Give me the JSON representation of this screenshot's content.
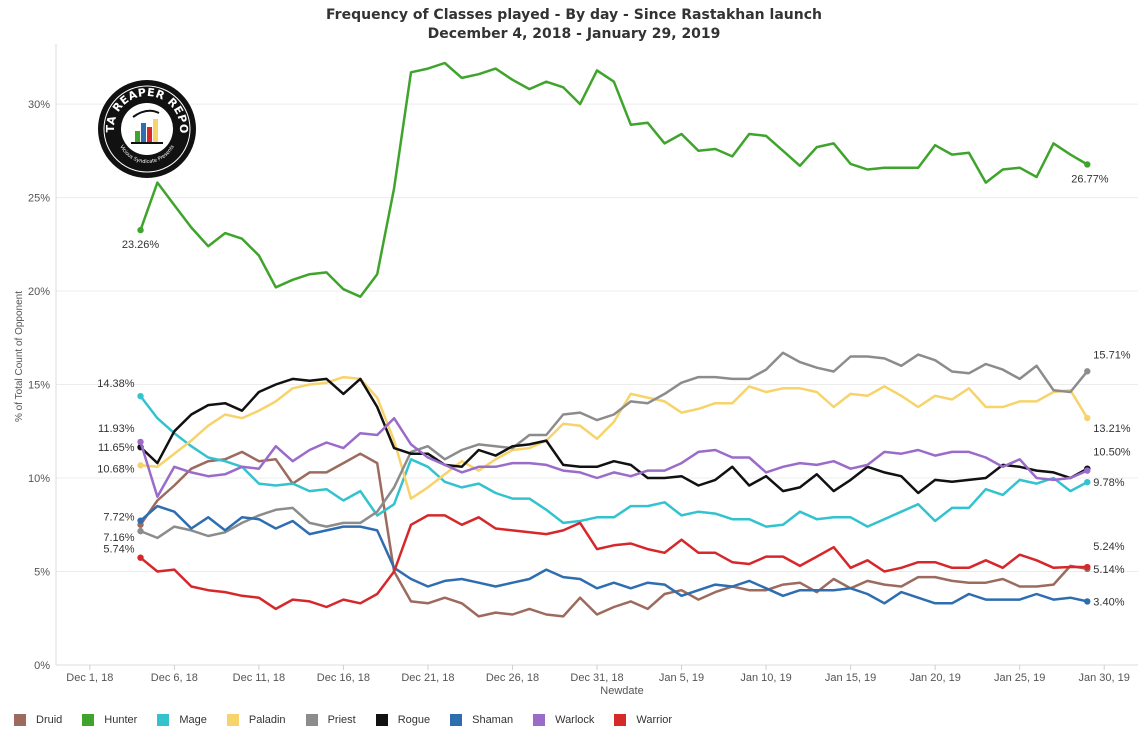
{
  "title": "Frequency of Classes played - By day - Since Rastakhan launch",
  "subtitle": "December 4, 2018 - January 29, 2019",
  "logo": {
    "text_top": "DATA REAPER REPORT",
    "text_bottom": "Vicious Syndicate Presents"
  },
  "chart_data": {
    "type": "line",
    "title": "Frequency of Classes played - By day - Since Rastakhan launch",
    "subtitle": "December 4, 2018 - January 29, 2019",
    "xlabel": "Newdate",
    "ylabel": "% of Total Count of Opponent",
    "ylim": [
      0,
      33
    ],
    "yticks": [
      0,
      5,
      10,
      15,
      20,
      25,
      30
    ],
    "ytick_labels": [
      "0%",
      "5%",
      "10%",
      "15%",
      "20%",
      "25%",
      "30%"
    ],
    "xtick_labels": [
      "Dec 1, 18",
      "Dec 6, 18",
      "Dec 11, 18",
      "Dec 16, 18",
      "Dec 21, 18",
      "Dec 26, 18",
      "Dec 31, 18",
      "Jan 5, 19",
      "Jan 10, 19",
      "Jan 15, 19",
      "Jan 20, 19",
      "Jan 25, 19",
      "Jan 30, 19"
    ],
    "x_start": "2018-12-04",
    "x_end": "2019-01-29",
    "grid": "horizontal",
    "legend_position": "bottom",
    "series": [
      {
        "name": "Druid",
        "color": "#9c6b5e",
        "values": [
          7.5,
          8.8,
          9.6,
          10.5,
          10.9,
          11.0,
          11.4,
          10.9,
          11.0,
          9.7,
          10.3,
          10.3,
          10.8,
          11.3,
          10.8,
          5.0,
          3.4,
          3.3,
          3.6,
          3.3,
          2.6,
          2.8,
          2.7,
          3.0,
          2.7,
          2.6,
          3.6,
          2.7,
          3.1,
          3.4,
          3.0,
          3.8,
          4.0,
          3.5,
          3.9,
          4.2,
          4.0,
          4.0,
          4.3,
          4.4,
          3.9,
          4.6,
          4.1,
          4.5,
          4.3,
          4.2,
          4.7,
          4.7,
          4.5,
          4.4,
          4.4,
          4.6,
          4.2,
          4.2,
          4.3,
          5.3,
          5.14
        ]
      },
      {
        "name": "Hunter",
        "color": "#3fa42c",
        "values": [
          23.26,
          25.8,
          24.6,
          23.4,
          22.4,
          23.1,
          22.8,
          21.9,
          20.2,
          20.6,
          20.9,
          21.0,
          20.1,
          19.7,
          20.9,
          25.5,
          31.7,
          31.9,
          32.2,
          31.4,
          31.6,
          31.9,
          31.3,
          30.8,
          31.2,
          30.9,
          30.0,
          31.8,
          31.2,
          28.9,
          29.0,
          27.9,
          28.4,
          27.5,
          27.6,
          27.2,
          28.4,
          28.3,
          27.5,
          26.7,
          27.7,
          27.9,
          26.8,
          26.5,
          26.6,
          26.6,
          26.6,
          27.8,
          27.3,
          27.4,
          25.8,
          26.5,
          26.6,
          26.1,
          27.9,
          27.3,
          26.77
        ]
      },
      {
        "name": "Mage",
        "color": "#32c3cf",
        "values": [
          14.38,
          13.2,
          12.4,
          11.7,
          11.1,
          10.9,
          10.6,
          9.7,
          9.6,
          9.7,
          9.3,
          9.4,
          8.8,
          9.3,
          8.0,
          8.6,
          11.0,
          10.6,
          9.8,
          9.5,
          9.7,
          9.2,
          8.9,
          8.9,
          8.3,
          7.6,
          7.7,
          7.9,
          7.9,
          8.5,
          8.5,
          8.7,
          8.0,
          8.2,
          8.1,
          7.8,
          7.8,
          7.4,
          7.5,
          8.2,
          7.8,
          7.9,
          7.9,
          7.4,
          7.8,
          8.2,
          8.6,
          7.7,
          8.4,
          8.4,
          9.4,
          9.1,
          9.9,
          9.7,
          10.0,
          9.3,
          9.78
        ]
      },
      {
        "name": "Paladin",
        "color": "#f7d36b",
        "values": [
          10.68,
          10.6,
          11.3,
          12.0,
          12.8,
          13.4,
          13.2,
          13.6,
          14.1,
          14.8,
          15.0,
          15.1,
          15.4,
          15.3,
          14.3,
          12.0,
          8.9,
          9.5,
          10.2,
          10.9,
          10.4,
          11.0,
          11.5,
          11.6,
          12.0,
          12.9,
          12.8,
          12.1,
          13.0,
          14.5,
          14.3,
          14.1,
          13.5,
          13.7,
          14.0,
          14.0,
          14.9,
          14.6,
          14.8,
          14.8,
          14.6,
          13.8,
          14.5,
          14.4,
          14.9,
          14.4,
          13.8,
          14.4,
          14.2,
          14.8,
          13.8,
          13.8,
          14.1,
          14.1,
          14.6,
          14.7,
          13.21
        ]
      },
      {
        "name": "Priest",
        "color": "#8c8c8c",
        "values": [
          7.16,
          6.8,
          7.4,
          7.2,
          6.9,
          7.1,
          7.6,
          8.0,
          8.3,
          8.4,
          7.6,
          7.4,
          7.6,
          7.6,
          8.2,
          9.5,
          11.4,
          11.7,
          11.0,
          11.5,
          11.8,
          11.7,
          11.6,
          12.3,
          12.3,
          13.4,
          13.5,
          13.1,
          13.4,
          14.1,
          14.0,
          14.5,
          15.1,
          15.4,
          15.4,
          15.3,
          15.3,
          15.8,
          16.7,
          16.2,
          15.9,
          15.7,
          16.5,
          16.5,
          16.4,
          16.0,
          16.6,
          16.3,
          15.7,
          15.6,
          16.1,
          15.8,
          15.3,
          16.0,
          14.7,
          14.6,
          15.71
        ]
      },
      {
        "name": "Rogue",
        "color": "#111111",
        "values": [
          11.65,
          10.8,
          12.5,
          13.4,
          13.9,
          14.0,
          13.6,
          14.6,
          15.0,
          15.3,
          15.2,
          15.3,
          14.5,
          15.3,
          13.8,
          11.6,
          11.3,
          11.3,
          10.7,
          10.6,
          11.5,
          11.2,
          11.7,
          11.8,
          12.0,
          10.7,
          10.6,
          10.6,
          10.9,
          10.7,
          10.0,
          10.0,
          10.1,
          9.6,
          9.9,
          10.6,
          9.6,
          10.1,
          9.3,
          9.5,
          10.2,
          9.3,
          9.9,
          10.6,
          10.3,
          10.1,
          9.2,
          9.9,
          9.8,
          9.9,
          10.0,
          10.7,
          10.6,
          10.4,
          10.3,
          10.0,
          10.5
        ]
      },
      {
        "name": "Shaman",
        "color": "#2f6db1",
        "values": [
          7.72,
          8.5,
          8.2,
          7.3,
          7.9,
          7.2,
          7.9,
          7.8,
          7.3,
          7.7,
          7.0,
          7.2,
          7.4,
          7.4,
          7.2,
          5.2,
          4.6,
          4.2,
          4.5,
          4.6,
          4.4,
          4.2,
          4.4,
          4.6,
          5.1,
          4.7,
          4.6,
          4.1,
          4.4,
          4.1,
          4.4,
          4.3,
          3.7,
          4.0,
          4.3,
          4.2,
          4.5,
          4.1,
          3.7,
          4.0,
          4.0,
          4.0,
          4.1,
          3.8,
          3.3,
          3.9,
          3.6,
          3.3,
          3.3,
          3.8,
          3.5,
          3.5,
          3.5,
          3.8,
          3.5,
          3.6,
          3.4
        ]
      },
      {
        "name": "Warlock",
        "color": "#9b6bc9",
        "values": [
          11.93,
          9.0,
          10.6,
          10.3,
          10.1,
          10.2,
          10.6,
          10.5,
          11.7,
          10.9,
          11.5,
          11.9,
          11.6,
          12.4,
          12.3,
          13.2,
          11.8,
          11.1,
          10.7,
          10.3,
          10.6,
          10.6,
          10.8,
          10.8,
          10.7,
          10.4,
          10.3,
          10.0,
          10.3,
          10.1,
          10.4,
          10.4,
          10.8,
          11.4,
          11.5,
          11.1,
          11.1,
          10.3,
          10.6,
          10.8,
          10.7,
          10.9,
          10.5,
          10.7,
          11.4,
          11.3,
          11.5,
          11.2,
          11.4,
          11.4,
          11.1,
          10.6,
          11.0,
          10.0,
          9.9,
          10.0,
          10.4
        ]
      },
      {
        "name": "Warrior",
        "color": "#d6282b",
        "values": [
          5.74,
          5.0,
          5.1,
          4.2,
          4.0,
          3.9,
          3.7,
          3.6,
          3.0,
          3.5,
          3.4,
          3.1,
          3.5,
          3.3,
          3.8,
          5.0,
          7.5,
          8.0,
          8.0,
          7.5,
          7.9,
          7.3,
          7.2,
          7.1,
          7.0,
          7.2,
          7.6,
          6.2,
          6.4,
          6.5,
          6.2,
          6.0,
          6.7,
          6.0,
          6.0,
          5.5,
          5.4,
          5.8,
          5.8,
          5.3,
          5.8,
          6.3,
          5.2,
          5.6,
          5.0,
          5.2,
          5.5,
          5.5,
          5.2,
          5.2,
          5.6,
          5.2,
          5.9,
          5.6,
          5.2,
          5.24,
          5.24
        ]
      }
    ],
    "annotations": [
      {
        "series": "Hunter",
        "end": "start",
        "label": "23.26%"
      },
      {
        "series": "Hunter",
        "end": "end",
        "label": "26.77%"
      },
      {
        "series": "Mage",
        "end": "start",
        "label": "14.38%"
      },
      {
        "series": "Warlock",
        "end": "start",
        "label": "11.93%"
      },
      {
        "series": "Rogue",
        "end": "start",
        "label": "11.65%"
      },
      {
        "series": "Paladin",
        "end": "start",
        "label": "10.68%"
      },
      {
        "series": "Shaman",
        "end": "start",
        "label": "7.72%"
      },
      {
        "series": "Priest",
        "end": "start",
        "label": "7.16%"
      },
      {
        "series": "Warrior",
        "end": "start",
        "label": "5.74%"
      },
      {
        "series": "Priest",
        "end": "end",
        "label": "15.71%"
      },
      {
        "series": "Paladin",
        "end": "end",
        "label": "13.21%"
      },
      {
        "series": "Rogue",
        "end": "end",
        "label": "10.50%"
      },
      {
        "series": "Mage",
        "end": "end",
        "label": "9.78%"
      },
      {
        "series": "Warrior",
        "end": "end",
        "label": "5.24%"
      },
      {
        "series": "Druid",
        "end": "end",
        "label": "5.14%"
      },
      {
        "series": "Shaman",
        "end": "end",
        "label": "3.40%"
      }
    ]
  }
}
